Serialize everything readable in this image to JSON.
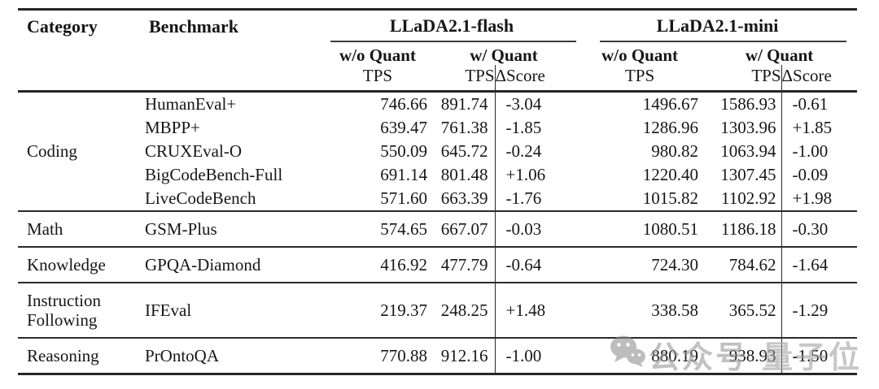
{
  "header": {
    "category": "Category",
    "benchmark": "Benchmark",
    "flash": {
      "name": "LLaDA2.1-flash",
      "wo_quant": "w/o Quant",
      "w_quant": "w/ Quant",
      "tps_label": "TPS",
      "quant_tps_label": "TPS",
      "delta_label": "ΔScore"
    },
    "mini": {
      "name": "LLaDA2.1-mini",
      "wo_quant": "w/o Quant",
      "w_quant": "w/ Quant",
      "tps_label": "TPS",
      "quant_tps_label": "TPS",
      "delta_label": "ΔScore"
    }
  },
  "sections": [
    {
      "category": "Coding",
      "rows": [
        {
          "benchmark": "HumanEval+",
          "flash_tps": "746.66",
          "flash_qtps": "891.74",
          "flash_delta": "-3.04",
          "mini_tps": "1496.67",
          "mini_qtps": "1586.93",
          "mini_delta": "-0.61"
        },
        {
          "benchmark": "MBPP+",
          "flash_tps": "639.47",
          "flash_qtps": "761.38",
          "flash_delta": "-1.85",
          "mini_tps": "1286.96",
          "mini_qtps": "1303.96",
          "mini_delta": "+1.85"
        },
        {
          "benchmark": "CRUXEval-O",
          "flash_tps": "550.09",
          "flash_qtps": "645.72",
          "flash_delta": "-0.24",
          "mini_tps": "980.82",
          "mini_qtps": "1063.94",
          "mini_delta": "-1.00"
        },
        {
          "benchmark": "BigCodeBench-Full",
          "flash_tps": "691.14",
          "flash_qtps": "801.48",
          "flash_delta": "+1.06",
          "mini_tps": "1220.40",
          "mini_qtps": "1307.45",
          "mini_delta": "-0.09"
        },
        {
          "benchmark": "LiveCodeBench",
          "flash_tps": "571.60",
          "flash_qtps": "663.39",
          "flash_delta": "-1.76",
          "mini_tps": "1015.82",
          "mini_qtps": "1102.92",
          "mini_delta": "+1.98"
        }
      ]
    },
    {
      "category": "Math",
      "rows": [
        {
          "benchmark": "GSM-Plus",
          "flash_tps": "574.65",
          "flash_qtps": "667.07",
          "flash_delta": "-0.03",
          "mini_tps": "1080.51",
          "mini_qtps": "1186.18",
          "mini_delta": "-0.30"
        }
      ]
    },
    {
      "category": "Knowledge",
      "rows": [
        {
          "benchmark": "GPQA-Diamond",
          "flash_tps": "416.92",
          "flash_qtps": "477.79",
          "flash_delta": "-0.64",
          "mini_tps": "724.30",
          "mini_qtps": "784.62",
          "mini_delta": "-1.64"
        }
      ]
    },
    {
      "category": "Instruction Following",
      "rows": [
        {
          "benchmark": "IFEval",
          "flash_tps": "219.37",
          "flash_qtps": "248.25",
          "flash_delta": "+1.48",
          "mini_tps": "338.58",
          "mini_qtps": "365.52",
          "mini_delta": "-1.29"
        }
      ]
    },
    {
      "category": "Reasoning",
      "rows": [
        {
          "benchmark": "PrOntoQA",
          "flash_tps": "770.88",
          "flash_qtps": "912.16",
          "flash_delta": "-1.00",
          "mini_tps": "880.19",
          "mini_qtps": "938.93",
          "mini_delta": "-1.50"
        }
      ]
    }
  ],
  "watermark": {
    "icon": "wechat-icon",
    "text_1": "公众号",
    "text_2": "量子位",
    "color": "#9b9b9b"
  },
  "colors": {
    "text": "#161616",
    "rule_thick": "#262626",
    "rule_thin": "#3c3c3c",
    "background": "#ffffff"
  }
}
